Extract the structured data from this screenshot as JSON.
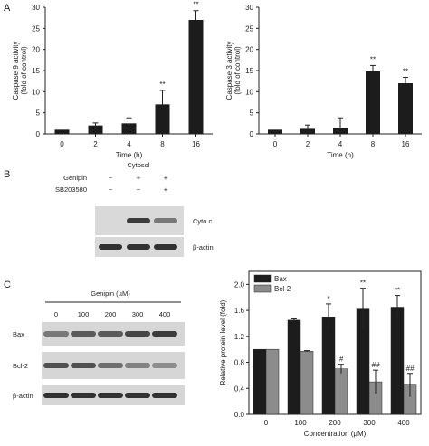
{
  "panel_labels": {
    "A": "A",
    "B": "B",
    "C": "C"
  },
  "chart_data": [
    {
      "type": "bar",
      "panel": "A",
      "ylabel_line1": "Caspase 9 activity",
      "ylabel_line2": "(fold of control)",
      "xlabel": "Time (h)",
      "categories": [
        "0",
        "2",
        "4",
        "8",
        "16"
      ],
      "values": [
        1.0,
        2.0,
        2.5,
        7.0,
        27.0
      ],
      "errors": [
        0.0,
        0.6,
        1.3,
        3.3,
        2.2
      ],
      "annotations": [
        "",
        "",
        "",
        "**",
        "**"
      ],
      "ylim": [
        0,
        30
      ],
      "yticks": [
        "0",
        "5",
        "10",
        "15",
        "20",
        "25",
        "30"
      ],
      "color": "#1c1c1c"
    },
    {
      "type": "bar",
      "panel": "A",
      "ylabel_line1": "Caspase 3 activity",
      "ylabel_line2": "(fold of control)",
      "xlabel": "Time (h)",
      "categories": [
        "0",
        "2",
        "4",
        "8",
        "16"
      ],
      "values": [
        1.0,
        1.2,
        1.5,
        14.8,
        12.0
      ],
      "errors": [
        0.0,
        0.9,
        2.3,
        1.4,
        1.4
      ],
      "annotations": [
        "",
        "",
        "",
        "**",
        "**"
      ],
      "ylim": [
        0,
        30
      ],
      "yticks": [
        "0",
        "5",
        "10",
        "15",
        "20",
        "25",
        "30"
      ],
      "color": "#1c1c1c"
    },
    {
      "type": "bar",
      "panel": "C",
      "ylabel": "Relative protein level (fold)",
      "xlabel": "Concentration (µM)",
      "categories": [
        "0",
        "100",
        "200",
        "300",
        "400"
      ],
      "series": [
        {
          "name": "Bax",
          "values": [
            1.0,
            1.45,
            1.5,
            1.62,
            1.65
          ],
          "errors": [
            0.0,
            0.02,
            0.2,
            0.32,
            0.18
          ],
          "annotations": [
            "",
            "",
            "*",
            "**",
            "**"
          ],
          "color": "#1c1c1c"
        },
        {
          "name": "Bcl-2",
          "values": [
            1.0,
            0.97,
            0.7,
            0.5,
            0.45
          ],
          "errors": [
            0.0,
            0.01,
            0.07,
            0.18,
            0.18
          ],
          "annotations": [
            "",
            "",
            "#",
            "##",
            "##"
          ],
          "color": "#8c8c8c"
        }
      ],
      "ylim": [
        0,
        2.2
      ],
      "yticks": [
        "0.0",
        "0.4",
        "0.8",
        "1.2",
        "1.6",
        "2.0"
      ],
      "legend": "top-left"
    }
  ],
  "blot_b": {
    "header": "Cytosol",
    "rows": [
      {
        "label": "Genipin",
        "marks": [
          "−",
          "+",
          "+"
        ]
      },
      {
        "label": "SB203580",
        "marks": [
          "−",
          "−",
          "+"
        ]
      }
    ],
    "bands": [
      {
        "label": "Cyto c",
        "intensity": [
          0.0,
          0.85,
          0.55
        ]
      },
      {
        "label": "β-actin",
        "intensity": [
          0.9,
          0.9,
          0.9
        ]
      }
    ]
  },
  "blot_c": {
    "header": "Genipin (µM)",
    "lanes": [
      "0",
      "100",
      "200",
      "300",
      "400"
    ],
    "bands": [
      {
        "label": "Bax",
        "intensity": [
          0.55,
          0.7,
          0.7,
          0.8,
          0.85
        ]
      },
      {
        "label": "Bcl-2",
        "intensity": [
          0.75,
          0.75,
          0.6,
          0.5,
          0.45
        ]
      },
      {
        "label": "β-actin",
        "intensity": [
          0.9,
          0.9,
          0.9,
          0.9,
          0.9
        ]
      }
    ]
  }
}
